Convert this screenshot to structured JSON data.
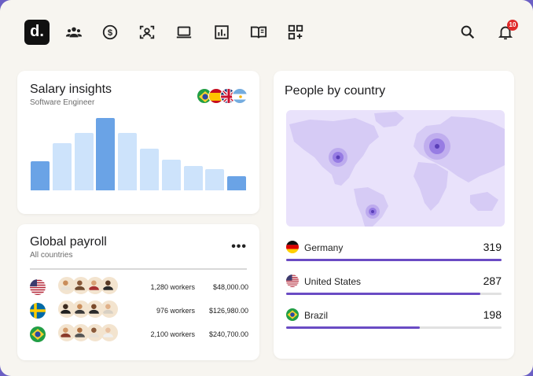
{
  "app": {
    "logo_text": "d."
  },
  "nav": {
    "icons": [
      "people-icon",
      "dollar-icon",
      "person-frame-icon",
      "laptop-icon",
      "bar-chart-icon",
      "book-icon",
      "apps-add-icon"
    ],
    "search_icon": "search-icon",
    "bell_icon": "bell-icon",
    "notification_count": "10"
  },
  "salary": {
    "title": "Salary insights",
    "subtitle": "Software Engineer",
    "flags": [
      "Brazil",
      "Spain",
      "United Kingdom",
      "Argentina"
    ],
    "bars": [
      {
        "level": 0.4,
        "highlight": true
      },
      {
        "level": 0.65,
        "highlight": false
      },
      {
        "level": 0.79,
        "highlight": false
      },
      {
        "level": 1.0,
        "highlight": true
      },
      {
        "level": 0.79,
        "highlight": false
      },
      {
        "level": 0.58,
        "highlight": false
      },
      {
        "level": 0.42,
        "highlight": false
      },
      {
        "level": 0.34,
        "highlight": false
      },
      {
        "level": 0.29,
        "highlight": false
      },
      {
        "level": 0.2,
        "highlight": true
      }
    ],
    "colors": {
      "highlight": "#6aa3e6",
      "normal": "#cde3fb"
    }
  },
  "payroll": {
    "title": "Global payroll",
    "subtitle": "All countries",
    "more_label": "•••",
    "rows": [
      {
        "country": "United States",
        "workers": "1,280 workers",
        "amount": "$48,000.00"
      },
      {
        "country": "Sweden",
        "workers": "976 workers",
        "amount": "$126,980.00"
      },
      {
        "country": "Brazil",
        "workers": "2,100 workers",
        "amount": "$240,700.00"
      }
    ]
  },
  "people": {
    "title": "People by country",
    "rows": [
      {
        "name": "Germany",
        "value": "319",
        "fraction": 1.0
      },
      {
        "name": "United States",
        "value": "287",
        "fraction": 0.9
      },
      {
        "name": "Brazil",
        "value": "198",
        "fraction": 0.62
      }
    ],
    "accent": "#6a4bc4"
  }
}
